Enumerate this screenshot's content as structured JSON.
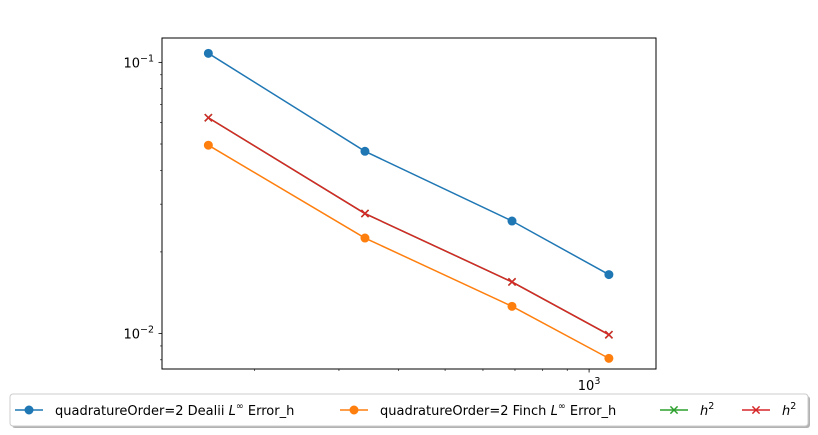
{
  "chart_data": {
    "type": "line",
    "xscale": "log",
    "yscale": "log",
    "x": [
      160,
      340,
      690,
      1100
    ],
    "xlim": [
      128,
      1380
    ],
    "ylim": [
      0.0074,
      0.123
    ],
    "x_ticks": [
      {
        "value": 1000,
        "base": "10",
        "exp": "3"
      }
    ],
    "y_ticks": [
      {
        "value": 0.1,
        "base": "10",
        "exp": "−1"
      },
      {
        "value": 0.01,
        "base": "10",
        "exp": "−2"
      }
    ],
    "grid": false,
    "legend_position": "below plot, single row",
    "series": [
      {
        "name_prefix": "quadratureOrder=2 Dealii ",
        "name_math": "L",
        "name_math_sup": "∞",
        "name_suffix": " Error_h",
        "values": [
          0.108,
          0.047,
          0.026,
          0.0165
        ],
        "color": "#1f77b4",
        "marker": "circle"
      },
      {
        "name_prefix": "quadratureOrder=2 Finch ",
        "name_math": "L",
        "name_math_sup": "∞",
        "name_suffix": " Error_h",
        "values": [
          0.0495,
          0.0225,
          0.0126,
          0.0081
        ],
        "color": "#ff7f0e",
        "marker": "circle"
      },
      {
        "name_prefix": "",
        "name_math": "h",
        "name_math_sup": "2",
        "name_suffix": "",
        "values": [
          0.0625,
          0.0277,
          0.0155,
          0.0099
        ],
        "color": "#2ca02c",
        "marker": "x"
      },
      {
        "name_prefix": "",
        "name_math": "h",
        "name_math_sup": "2",
        "name_suffix": "",
        "values": [
          0.0625,
          0.0277,
          0.0155,
          0.0099
        ],
        "color": "#d62728",
        "marker": "x"
      }
    ]
  }
}
